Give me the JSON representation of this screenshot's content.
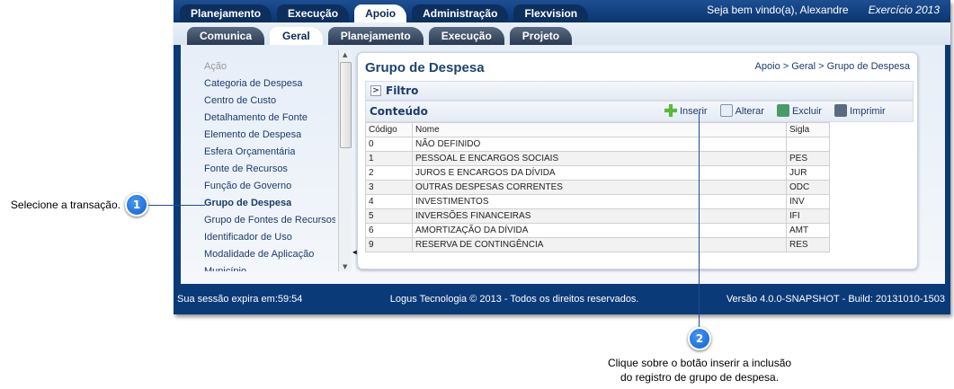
{
  "top_tabs": [
    {
      "label": "Planejamento"
    },
    {
      "label": "Execução"
    },
    {
      "label": "Apoio",
      "active": true
    },
    {
      "label": "Administração"
    },
    {
      "label": "Flexvision"
    }
  ],
  "welcome": "Seja bem vindo(a), Alexandre",
  "exercise": "Exercício 2013",
  "sub_tabs": [
    {
      "label": "Comunica"
    },
    {
      "label": "Geral",
      "active": true
    },
    {
      "label": "Planejamento"
    },
    {
      "label": "Execução"
    },
    {
      "label": "Projeto"
    }
  ],
  "sidebar": {
    "items": [
      "Ação",
      "Categoria de Despesa",
      "Centro de Custo",
      "Detalhamento de Fonte",
      "Elemento de Despesa",
      "Esfera Orçamentária",
      "Fonte de Recursos",
      "Função de Governo",
      "Grupo de Despesa",
      "Grupo de Fontes de Recursos",
      "Identificador de Uso",
      "Modalidade de Aplicação",
      "Município"
    ],
    "selected": "Grupo de Despesa"
  },
  "main": {
    "title": "Grupo de Despesa",
    "breadcrumb": "Apoio > Geral > Grupo de Despesa",
    "filter_label": "Filtro",
    "content_label": "Conteúdo",
    "toolbar": {
      "insert": "Inserir",
      "edit": "Alterar",
      "delete": "Excluir",
      "print": "Imprimir"
    },
    "table": {
      "headers": [
        "Código",
        "Nome",
        "Sigla"
      ],
      "rows": [
        [
          "0",
          "NÃO DEFINIDO",
          ""
        ],
        [
          "1",
          "PESSOAL E ENCARGOS SOCIAIS",
          "PES"
        ],
        [
          "2",
          "JUROS E ENCARGOS DA DÍVIDA",
          "JUR"
        ],
        [
          "3",
          "OUTRAS DESPESAS CORRENTES",
          "ODC"
        ],
        [
          "4",
          "INVESTIMENTOS",
          "INV"
        ],
        [
          "5",
          "INVERSÕES FINANCEIRAS",
          "IFI"
        ],
        [
          "6",
          "AMORTIZAÇÃO DA DÍVIDA",
          "AMT"
        ],
        [
          "9",
          "RESERVA DE CONTINGÊNCIA",
          "RES"
        ]
      ]
    }
  },
  "footer": {
    "session": "Sua sessão expira em:59:54",
    "copyright": "Logus Tecnologia © 2013 - Todos os direitos reservados.",
    "version": "Versão 4.0.0-SNAPSHOT - Build: 20131010-1503"
  },
  "callouts": [
    {
      "number": "1",
      "text": "Selecione a transação."
    },
    {
      "number": "2",
      "text_line1": "Clique sobre o botão inserir a inclusão",
      "text_line2": "do registro de grupo de despesa."
    }
  ],
  "colors": {
    "frame": "#0b3a78",
    "callout": "#1a6fe0",
    "title": "#1c4470"
  }
}
